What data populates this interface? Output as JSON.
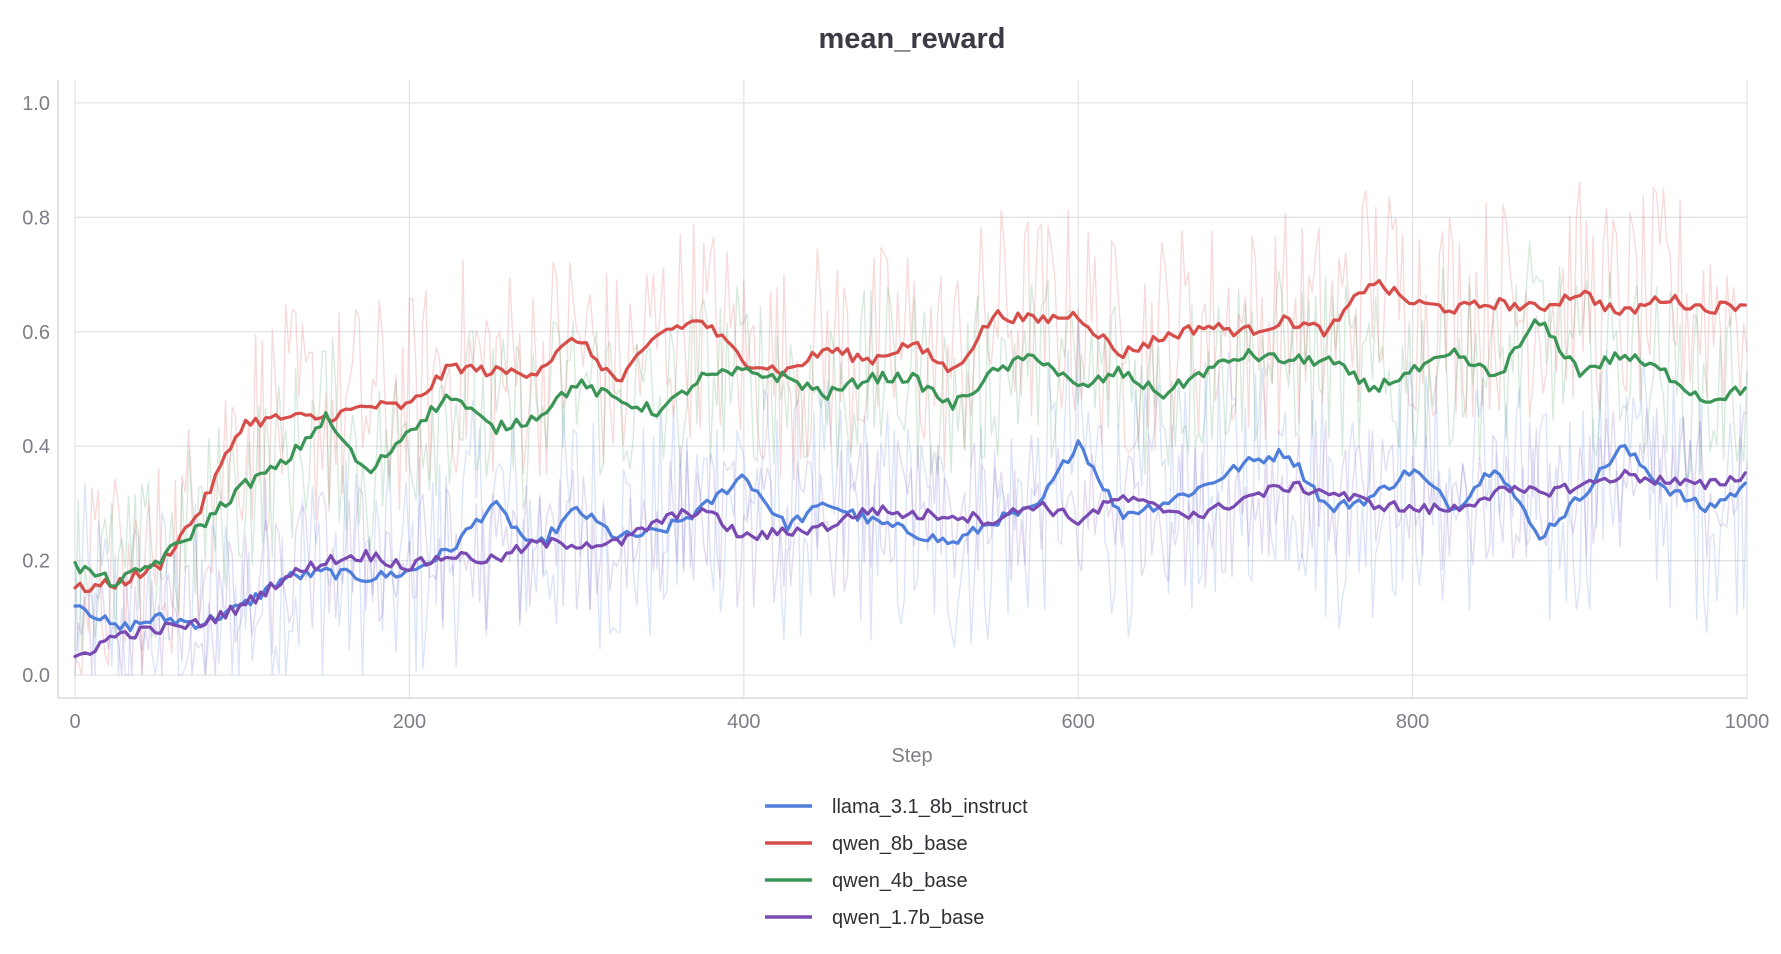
{
  "chart_data": {
    "type": "line",
    "title": "mean_reward",
    "xlabel": "Step",
    "ylabel": "",
    "xlim": [
      0,
      1000
    ],
    "ylim": [
      -0.04,
      1.04
    ],
    "x_ticks": [
      0,
      200,
      400,
      600,
      800,
      1000
    ],
    "y_ticks": [
      0.0,
      0.2,
      0.4,
      0.6,
      0.8,
      1.0
    ],
    "x_tick_labels": [
      "0",
      "200",
      "400",
      "600",
      "800",
      "1000"
    ],
    "y_tick_labels": [
      "0.0",
      "0.2",
      "0.4",
      "0.6",
      "0.8",
      "1.0"
    ],
    "grid": true,
    "legend_position": "bottom-center",
    "raw_series_style": "faint unsmoothed values behind each smoothed line",
    "x": [
      0,
      25,
      50,
      75,
      100,
      125,
      150,
      175,
      200,
      225,
      250,
      275,
      300,
      325,
      350,
      375,
      400,
      425,
      450,
      475,
      500,
      525,
      550,
      575,
      600,
      625,
      650,
      675,
      700,
      725,
      750,
      775,
      800,
      825,
      850,
      875,
      900,
      925,
      950,
      975,
      1000
    ],
    "series": [
      {
        "name": "llama_3.1_8b_instruct",
        "color": "#4f7fdb",
        "values": [
          0.13,
          0.08,
          0.1,
          0.09,
          0.12,
          0.17,
          0.18,
          0.17,
          0.18,
          0.22,
          0.3,
          0.22,
          0.29,
          0.24,
          0.25,
          0.29,
          0.35,
          0.26,
          0.3,
          0.27,
          0.25,
          0.23,
          0.27,
          0.29,
          0.41,
          0.28,
          0.3,
          0.33,
          0.37,
          0.39,
          0.29,
          0.31,
          0.36,
          0.29,
          0.37,
          0.24,
          0.31,
          0.4,
          0.33,
          0.29,
          0.33
        ]
      },
      {
        "name": "qwen_8b_base",
        "color": "#d64d4a",
        "values": [
          0.15,
          0.16,
          0.19,
          0.29,
          0.44,
          0.45,
          0.45,
          0.47,
          0.47,
          0.54,
          0.53,
          0.53,
          0.59,
          0.51,
          0.6,
          0.62,
          0.55,
          0.53,
          0.57,
          0.55,
          0.58,
          0.53,
          0.63,
          0.62,
          0.63,
          0.56,
          0.59,
          0.61,
          0.6,
          0.62,
          0.6,
          0.69,
          0.65,
          0.64,
          0.65,
          0.64,
          0.67,
          0.63,
          0.66,
          0.64,
          0.65
        ]
      },
      {
        "name": "qwen_4b_base",
        "color": "#3b9556",
        "values": [
          0.19,
          0.16,
          0.2,
          0.26,
          0.33,
          0.37,
          0.45,
          0.35,
          0.43,
          0.49,
          0.43,
          0.45,
          0.51,
          0.48,
          0.46,
          0.52,
          0.53,
          0.52,
          0.49,
          0.52,
          0.52,
          0.47,
          0.53,
          0.56,
          0.5,
          0.53,
          0.49,
          0.53,
          0.56,
          0.55,
          0.55,
          0.5,
          0.53,
          0.56,
          0.52,
          0.62,
          0.53,
          0.56,
          0.53,
          0.48,
          0.5
        ]
      },
      {
        "name": "qwen_1.7b_base",
        "color": "#7a4ab3",
        "values": [
          0.03,
          0.07,
          0.08,
          0.09,
          0.12,
          0.17,
          0.2,
          0.21,
          0.19,
          0.21,
          0.2,
          0.23,
          0.23,
          0.23,
          0.27,
          0.29,
          0.24,
          0.25,
          0.26,
          0.29,
          0.28,
          0.28,
          0.27,
          0.3,
          0.27,
          0.31,
          0.29,
          0.28,
          0.31,
          0.33,
          0.32,
          0.3,
          0.29,
          0.29,
          0.32,
          0.32,
          0.33,
          0.35,
          0.34,
          0.33,
          0.35
        ]
      }
    ]
  }
}
